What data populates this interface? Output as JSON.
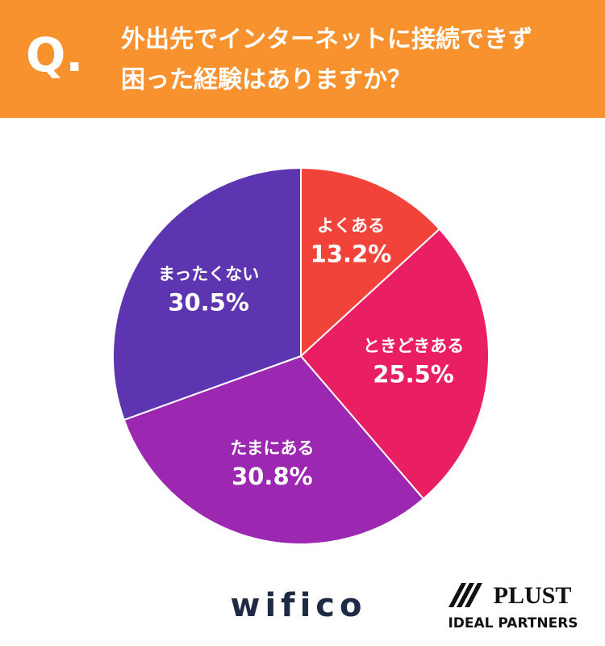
{
  "header": {
    "mark": "Q.",
    "question_lines": [
      "外出先でインターネットに接続できず",
      "困った経験はありますか？"
    ]
  },
  "chart_data": {
    "type": "pie",
    "categories": [
      "よくある",
      "ときどきある",
      "たまにある",
      "まったくない"
    ],
    "values": [
      13.2,
      25.5,
      30.8,
      30.5
    ],
    "value_labels": [
      "13.2%",
      "25.5%",
      "30.8%",
      "30.5%"
    ],
    "colors": [
      "#f2433a",
      "#e91e63",
      "#9c27b0",
      "#5e35b1"
    ]
  },
  "footer": {
    "logo_left": "wifico",
    "logo_right": "PLUST",
    "logo_right_sub": "IDEAL PARTNERS"
  }
}
